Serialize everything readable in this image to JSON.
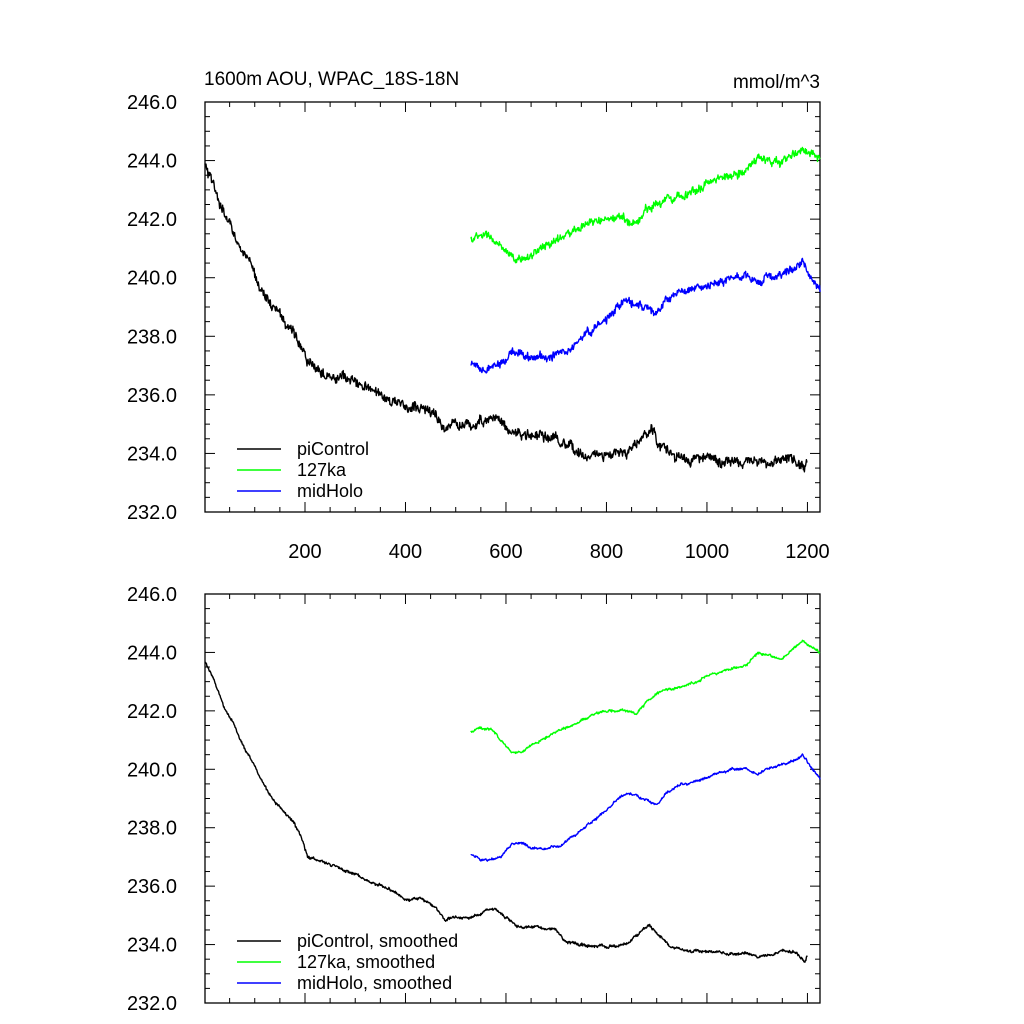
{
  "chart_data": [
    {
      "type": "line",
      "title": "1600m AOU, WPAC_18S-18N",
      "units": "mmol/m^3",
      "xlabel": "",
      "ylabel": "",
      "xlim": [
        1,
        1225
      ],
      "ylim": [
        232,
        246
      ],
      "xticks": [
        "200",
        "400",
        "600",
        "800",
        "1000",
        "1200"
      ],
      "yticks": [
        "232.0",
        "234.0",
        "236.0",
        "238.0",
        "240.0",
        "242.0",
        "244.0",
        "246.0"
      ],
      "legend_position": "bottom-left",
      "series": [
        {
          "name": "piControl",
          "color": "#000000",
          "noise": 0.25,
          "x": [
            1,
            20,
            40,
            60,
            80,
            100,
            120,
            140,
            160,
            180,
            195,
            205,
            230,
            260,
            300,
            340,
            380,
            400,
            430,
            460,
            480,
            500,
            530,
            560,
            580,
            600,
            630,
            660,
            700,
            720,
            760,
            800,
            840,
            870,
            885,
            900,
            930,
            960,
            1000,
            1040,
            1080,
            1100,
            1120,
            1150,
            1180,
            1195,
            1200
          ],
          "y": [
            243.8,
            243.0,
            242.1,
            241.5,
            240.7,
            240.1,
            239.4,
            238.9,
            238.5,
            238.1,
            237.6,
            237.0,
            236.9,
            236.7,
            236.4,
            236.1,
            235.8,
            235.5,
            235.6,
            235.3,
            234.8,
            235.0,
            234.9,
            235.2,
            235.3,
            234.9,
            234.6,
            234.6,
            234.5,
            234.1,
            234.0,
            233.9,
            234.0,
            234.5,
            234.8,
            234.5,
            233.9,
            233.8,
            233.8,
            233.7,
            233.7,
            233.6,
            233.6,
            233.8,
            233.7,
            233.5,
            233.7
          ]
        },
        {
          "name": "127ka",
          "color": "#00ff00",
          "noise": 0.2,
          "x": [
            530,
            550,
            570,
            590,
            610,
            630,
            660,
            700,
            740,
            780,
            800,
            830,
            860,
            880,
            900,
            940,
            980,
            1000,
            1040,
            1080,
            1100,
            1120,
            1150,
            1170,
            1190,
            1200,
            1225
          ],
          "y": [
            241.3,
            241.4,
            241.4,
            241.0,
            240.6,
            240.6,
            240.9,
            241.3,
            241.6,
            241.9,
            242.0,
            242.0,
            241.9,
            242.3,
            242.6,
            242.8,
            243.0,
            243.2,
            243.5,
            243.7,
            244.1,
            244.0,
            243.9,
            244.2,
            244.4,
            244.3,
            244.0
          ]
        },
        {
          "name": "midHolo",
          "color": "#0000ff",
          "noise": 0.2,
          "x": [
            530,
            550,
            570,
            590,
            610,
            630,
            650,
            680,
            710,
            740,
            770,
            800,
            830,
            850,
            870,
            900,
            920,
            950,
            980,
            1010,
            1050,
            1080,
            1100,
            1120,
            1140,
            1170,
            1190,
            1210,
            1225
          ],
          "y": [
            237.0,
            236.8,
            236.9,
            237.0,
            237.4,
            237.5,
            237.3,
            237.3,
            237.4,
            237.8,
            238.2,
            238.6,
            239.1,
            239.2,
            239.0,
            238.8,
            239.2,
            239.5,
            239.6,
            239.8,
            240.0,
            240.0,
            239.8,
            240.0,
            240.1,
            240.3,
            240.5,
            240.0,
            239.6
          ]
        }
      ]
    },
    {
      "type": "line",
      "title": "",
      "xlabel": "",
      "ylabel": "",
      "xlim": [
        1,
        1225
      ],
      "ylim": [
        232,
        246
      ],
      "yticks": [
        "232.0",
        "234.0",
        "236.0",
        "238.0",
        "240.0",
        "242.0",
        "244.0",
        "246.0"
      ],
      "legend_position": "bottom-left",
      "series": [
        {
          "name": "piControl, smoothed",
          "color": "#000000",
          "noise": 0.07,
          "x": [
            1,
            20,
            40,
            60,
            80,
            100,
            120,
            140,
            160,
            180,
            195,
            205,
            230,
            260,
            300,
            340,
            380,
            400,
            430,
            460,
            480,
            500,
            530,
            560,
            580,
            600,
            630,
            660,
            700,
            720,
            760,
            800,
            840,
            870,
            885,
            900,
            930,
            960,
            1000,
            1040,
            1080,
            1100,
            1120,
            1150,
            1180,
            1195,
            1200
          ],
          "y": [
            243.7,
            243.0,
            242.1,
            241.5,
            240.7,
            240.1,
            239.4,
            238.9,
            238.5,
            238.1,
            237.6,
            237.0,
            236.9,
            236.7,
            236.4,
            236.1,
            235.8,
            235.5,
            235.6,
            235.3,
            234.8,
            235.0,
            234.9,
            235.2,
            235.2,
            234.9,
            234.6,
            234.6,
            234.5,
            234.1,
            234.0,
            233.9,
            234.0,
            234.5,
            234.7,
            234.4,
            233.9,
            233.8,
            233.8,
            233.7,
            233.7,
            233.6,
            233.6,
            233.8,
            233.7,
            233.4,
            233.6
          ]
        },
        {
          "name": "127ka, smoothed",
          "color": "#00ff00",
          "noise": 0.06,
          "x": [
            530,
            550,
            570,
            590,
            610,
            630,
            660,
            700,
            740,
            780,
            800,
            830,
            860,
            880,
            900,
            940,
            980,
            1000,
            1040,
            1080,
            1100,
            1120,
            1150,
            1170,
            1190,
            1200,
            1225
          ],
          "y": [
            241.3,
            241.4,
            241.4,
            241.0,
            240.6,
            240.6,
            240.9,
            241.3,
            241.6,
            241.9,
            242.0,
            242.0,
            241.9,
            242.3,
            242.6,
            242.8,
            243.0,
            243.2,
            243.4,
            243.6,
            244.0,
            243.9,
            243.8,
            244.1,
            244.4,
            244.3,
            244.0
          ]
        },
        {
          "name": "midHolo, smoothed",
          "color": "#0000ff",
          "noise": 0.06,
          "x": [
            530,
            550,
            570,
            590,
            610,
            630,
            650,
            680,
            710,
            740,
            770,
            800,
            830,
            850,
            870,
            900,
            920,
            950,
            980,
            1010,
            1050,
            1080,
            1100,
            1120,
            1140,
            1170,
            1190,
            1210,
            1225
          ],
          "y": [
            237.1,
            236.9,
            236.9,
            237.0,
            237.4,
            237.5,
            237.3,
            237.3,
            237.4,
            237.8,
            238.2,
            238.6,
            239.1,
            239.2,
            239.0,
            238.8,
            239.2,
            239.5,
            239.6,
            239.8,
            240.0,
            240.0,
            239.8,
            240.0,
            240.1,
            240.3,
            240.5,
            240.0,
            239.7
          ]
        }
      ]
    }
  ]
}
